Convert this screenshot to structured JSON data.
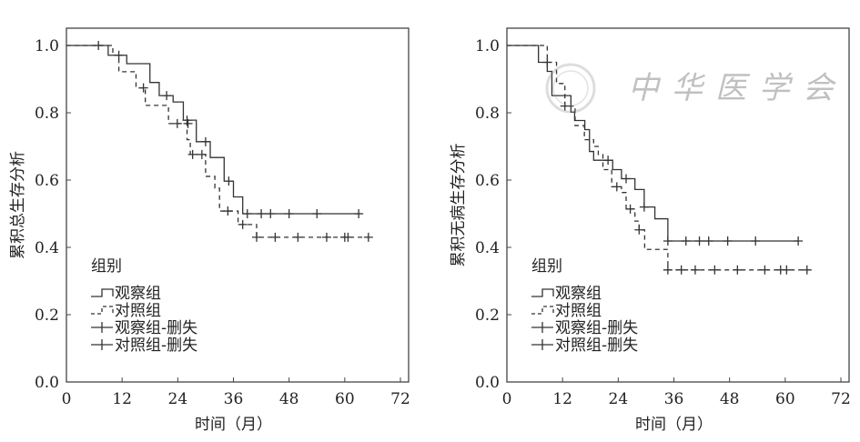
{
  "watermark": {
    "logo_text": "中华医学会"
  },
  "legend": {
    "title": "组别",
    "items": [
      "观察组",
      "对照组",
      "观察组-删失",
      "对照组-删失"
    ]
  },
  "chart_data": [
    {
      "type": "line",
      "subtype": "kaplan-meier step",
      "ylabel": "累积总生存分析",
      "xlabel": "时间（月）",
      "xlim": [
        0,
        72
      ],
      "ylim": [
        0,
        1.0
      ],
      "xticks": [
        "0",
        "12",
        "24",
        "36",
        "48",
        "60",
        "72"
      ],
      "yticks": [
        "0.0",
        "0.2",
        "0.4",
        "0.6",
        "0.8",
        "1.0"
      ],
      "grid": false,
      "legend_position": "bottom-left",
      "series": [
        {
          "name": "观察组",
          "style": "solid",
          "end": 63.5,
          "steps": [
            [
              0,
              1.0
            ],
            [
              9,
              0.971
            ],
            [
              13,
              0.946
            ],
            [
              18,
              0.89
            ],
            [
              20,
              0.851
            ],
            [
              23,
              0.832
            ],
            [
              25.2,
              0.778
            ],
            [
              28,
              0.714
            ],
            [
              31,
              0.667
            ],
            [
              34,
              0.597
            ],
            [
              36,
              0.55
            ],
            [
              38,
              0.5
            ]
          ],
          "censored": [
            [
              6.9,
              1.0
            ],
            [
              21.6,
              0.851
            ],
            [
              26,
              0.778
            ],
            [
              30,
              0.714
            ],
            [
              35,
              0.597
            ],
            [
              39,
              0.5
            ],
            [
              42,
              0.5
            ],
            [
              44,
              0.5
            ],
            [
              48,
              0.5
            ],
            [
              54,
              0.5
            ],
            [
              63,
              0.5
            ]
          ]
        },
        {
          "name": "对照组",
          "style": "dashed",
          "end": 65.1,
          "steps": [
            [
              0,
              1.0
            ],
            [
              10,
              0.971
            ],
            [
              11.3,
              0.922
            ],
            [
              15,
              0.874
            ],
            [
              17,
              0.822
            ],
            [
              22,
              0.768
            ],
            [
              26,
              0.72
            ],
            [
              26.7,
              0.676
            ],
            [
              30,
              0.611
            ],
            [
              32,
              0.576
            ],
            [
              33,
              0.508
            ],
            [
              37,
              0.468
            ],
            [
              41,
              0.43
            ]
          ],
          "censored": [
            [
              11.3,
              0.971
            ],
            [
              16.6,
              0.874
            ],
            [
              23.9,
              0.768
            ],
            [
              26.2,
              0.768
            ],
            [
              27.2,
              0.676
            ],
            [
              29.2,
              0.676
            ],
            [
              34.8,
              0.508
            ],
            [
              38,
              0.468
            ],
            [
              41,
              0.43
            ],
            [
              45,
              0.43
            ],
            [
              49.9,
              0.43
            ],
            [
              56.1,
              0.43
            ],
            [
              60,
              0.43
            ],
            [
              60.7,
              0.43
            ],
            [
              65.1,
              0.43
            ]
          ]
        }
      ]
    },
    {
      "type": "line",
      "subtype": "kaplan-meier step",
      "ylabel": "累积无病生存分析",
      "xlabel": "时间（月）",
      "xlim": [
        0,
        72
      ],
      "ylim": [
        0,
        1.0
      ],
      "xticks": [
        "0",
        "12",
        "24",
        "36",
        "48",
        "60",
        "72"
      ],
      "yticks": [
        "0.0",
        "0.2",
        "0.4",
        "0.6",
        "0.8",
        "1.0"
      ],
      "grid": false,
      "legend_position": "bottom-left",
      "series": [
        {
          "name": "观察组",
          "style": "solid",
          "end": 62.8,
          "steps": [
            [
              0,
              1.0
            ],
            [
              6.8,
              0.95
            ],
            [
              8.7,
              0.923
            ],
            [
              9.7,
              0.851
            ],
            [
              13.8,
              0.802
            ],
            [
              14.6,
              0.777
            ],
            [
              16.8,
              0.75
            ],
            [
              17.8,
              0.685
            ],
            [
              18.7,
              0.659
            ],
            [
              22.8,
              0.631
            ],
            [
              24.7,
              0.604
            ],
            [
              27.6,
              0.572
            ],
            [
              29.6,
              0.52
            ],
            [
              31.9,
              0.485
            ],
            [
              34.7,
              0.419
            ]
          ],
          "censored": [
            [
              8.7,
              0.95
            ],
            [
              21.8,
              0.659
            ],
            [
              25.7,
              0.604
            ],
            [
              29.6,
              0.52
            ],
            [
              34.7,
              0.419
            ],
            [
              38.6,
              0.419
            ],
            [
              41.5,
              0.419
            ],
            [
              43.5,
              0.419
            ],
            [
              47.6,
              0.419
            ],
            [
              53.6,
              0.419
            ],
            [
              62.8,
              0.419
            ]
          ]
        },
        {
          "name": "对照组",
          "style": "dashed",
          "end": 64.7,
          "steps": [
            [
              0,
              1.0
            ],
            [
              8.7,
              0.95
            ],
            [
              10.7,
              0.887
            ],
            [
              12.5,
              0.82
            ],
            [
              14.7,
              0.762
            ],
            [
              16.7,
              0.72
            ],
            [
              18.7,
              0.7
            ],
            [
              19.7,
              0.676
            ],
            [
              20.7,
              0.631
            ],
            [
              22.6,
              0.58
            ],
            [
              24.7,
              0.563
            ],
            [
              25.7,
              0.514
            ],
            [
              27.6,
              0.478
            ],
            [
              28.5,
              0.452
            ],
            [
              29.7,
              0.394
            ],
            [
              34.7,
              0.333
            ]
          ],
          "censored": [
            [
              12.5,
              0.82
            ],
            [
              23.7,
              0.58
            ],
            [
              26.6,
              0.514
            ],
            [
              28.5,
              0.452
            ],
            [
              34.7,
              0.333
            ],
            [
              37.6,
              0.333
            ],
            [
              40.6,
              0.333
            ],
            [
              44.8,
              0.333
            ],
            [
              49.7,
              0.333
            ],
            [
              55.6,
              0.333
            ],
            [
              59,
              0.333
            ],
            [
              60.3,
              0.333
            ],
            [
              64.7,
              0.333
            ]
          ]
        }
      ]
    }
  ]
}
